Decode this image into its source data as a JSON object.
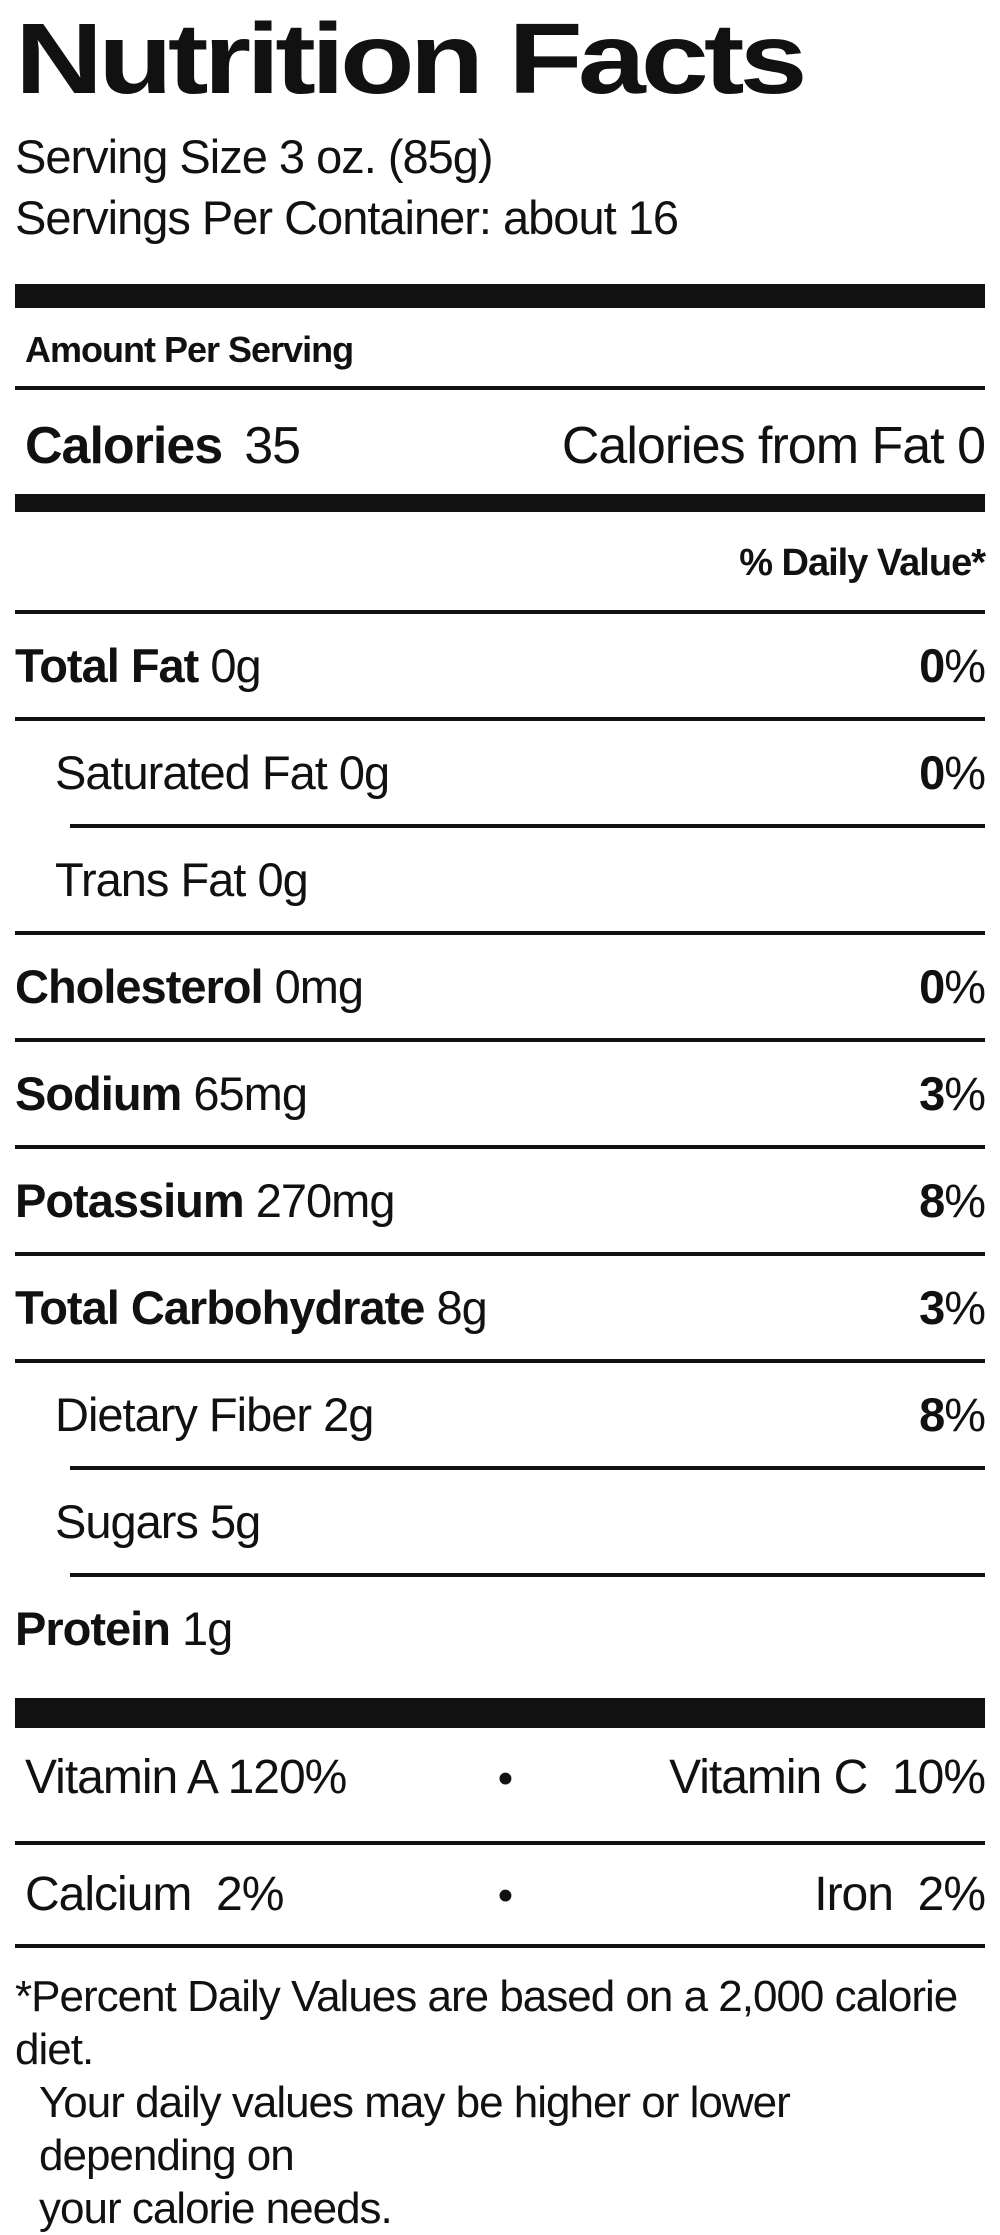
{
  "label": {
    "title": "Nutrition Facts",
    "serving_size": "Serving Size 3 oz. (85g)",
    "servings_per_container": "Servings Per Container: about 16",
    "amount_per_serving": "Amount Per Serving",
    "calories_label": "Calories",
    "calories_value": "35",
    "calories_from_fat": "Calories from Fat 0",
    "daily_value_header": "% Daily Value*",
    "nutrients": [
      {
        "name": "Total Fat",
        "amount": "0g",
        "dv_num": "0",
        "dv_sym": "%"
      },
      {
        "name": "Saturated Fat",
        "amount": "0g",
        "dv_num": "0",
        "dv_sym": "%"
      },
      {
        "name": "Trans Fat",
        "amount": "0g",
        "dv_num": "",
        "dv_sym": ""
      },
      {
        "name": "Cholesterol",
        "amount": "0mg",
        "dv_num": "0",
        "dv_sym": "%"
      },
      {
        "name": "Sodium",
        "amount": "65mg",
        "dv_num": "3",
        "dv_sym": "%"
      },
      {
        "name": "Potassium",
        "amount": "270mg",
        "dv_num": "8",
        "dv_sym": "%"
      },
      {
        "name": "Total Carbohydrate",
        "amount": "8g",
        "dv_num": "3",
        "dv_sym": "%"
      },
      {
        "name": "Dietary Fiber",
        "amount": "2g",
        "dv_num": "8",
        "dv_sym": "%"
      },
      {
        "name": "Sugars",
        "amount": "5g",
        "dv_num": "",
        "dv_sym": ""
      },
      {
        "name": "Protein",
        "amount": "1g",
        "dv_num": "",
        "dv_sym": ""
      }
    ],
    "micronutrients": {
      "bullet": "•",
      "row1_left": "Vitamin A 120%",
      "row1_right": "Vitamin C  10%",
      "row2_left": "Calcium  2%",
      "row2_right": "Iron  2%"
    },
    "footnote_lines": [
      "*Percent Daily Values are based on a 2,000 calorie diet.",
      "Your daily values may be higher or lower depending on",
      "your calorie needs."
    ]
  },
  "colors": {
    "text": "#111111",
    "background": "#ffffff",
    "rule": "#111111"
  }
}
